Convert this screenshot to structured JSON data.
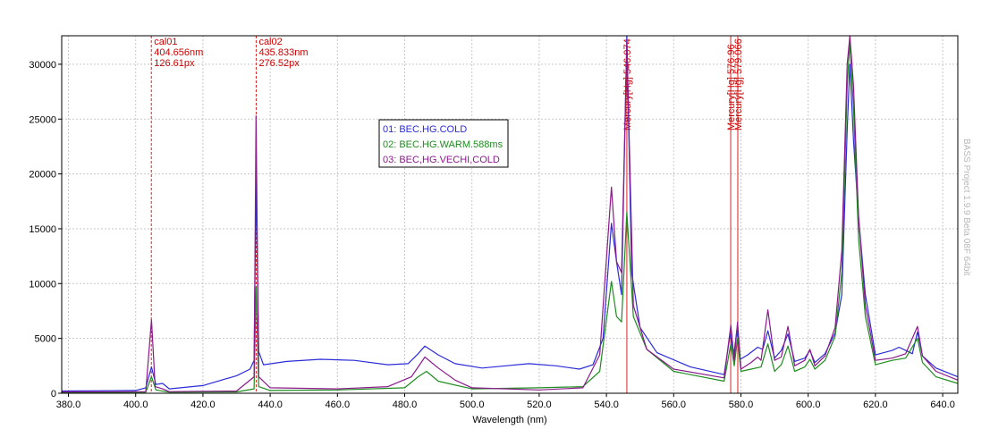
{
  "chart_data": {
    "type": "line",
    "xlabel": "Wavelength (nm)",
    "xlim": [
      378.0,
      644.5
    ],
    "ylim": [
      0,
      32600
    ],
    "x_ticks": [
      "380.0",
      "400.0",
      "420.0",
      "440.0",
      "460.0",
      "480.0",
      "500.0",
      "520.0",
      "540.0",
      "560.0",
      "580.0",
      "600.0",
      "620.0",
      "640.0"
    ],
    "y_ticks": [
      "0",
      "5000",
      "10000",
      "15000",
      "20000",
      "25000",
      "30000"
    ],
    "grid": true,
    "legend_position": "top-center",
    "series": [
      {
        "name": "01: BEC.HG.COLD",
        "color": "#2b2bd9",
        "points": [
          [
            378,
            200
          ],
          [
            400,
            250
          ],
          [
            403,
            500
          ],
          [
            404.7,
            2400
          ],
          [
            406,
            800
          ],
          [
            408,
            900
          ],
          [
            410,
            400
          ],
          [
            420,
            700
          ],
          [
            430,
            1600
          ],
          [
            434,
            2200
          ],
          [
            435.2,
            3000
          ],
          [
            435.8,
            19300
          ],
          [
            436.6,
            3800
          ],
          [
            438,
            2600
          ],
          [
            445,
            2900
          ],
          [
            455,
            3100
          ],
          [
            465,
            3000
          ],
          [
            475,
            2600
          ],
          [
            481,
            2700
          ],
          [
            484,
            3600
          ],
          [
            486,
            4300
          ],
          [
            490,
            3500
          ],
          [
            495,
            2700
          ],
          [
            503,
            2300
          ],
          [
            510,
            2500
          ],
          [
            517,
            2700
          ],
          [
            525,
            2500
          ],
          [
            532,
            2200
          ],
          [
            536,
            2600
          ],
          [
            539,
            5000
          ],
          [
            541.5,
            15500
          ],
          [
            543,
            12000
          ],
          [
            544.5,
            9000
          ],
          [
            546.07,
            32600
          ],
          [
            547.5,
            11000
          ],
          [
            550,
            6000
          ],
          [
            555,
            3700
          ],
          [
            565,
            2400
          ],
          [
            575,
            1700
          ],
          [
            576.8,
            5400
          ],
          [
            577.9,
            3500
          ],
          [
            578.8,
            5800
          ],
          [
            579.8,
            3100
          ],
          [
            582,
            3500
          ],
          [
            585,
            4200
          ],
          [
            586.5,
            4000
          ],
          [
            588,
            5700
          ],
          [
            590,
            3200
          ],
          [
            592,
            3900
          ],
          [
            594,
            5400
          ],
          [
            596,
            2900
          ],
          [
            599,
            3200
          ],
          [
            600.5,
            3900
          ],
          [
            602,
            2800
          ],
          [
            605,
            3600
          ],
          [
            608,
            5500
          ],
          [
            610,
            9000
          ],
          [
            611.6,
            24000
          ],
          [
            612.4,
            30000
          ],
          [
            613.5,
            23000
          ],
          [
            615,
            16000
          ],
          [
            617,
            9000
          ],
          [
            620,
            3500
          ],
          [
            625,
            3900
          ],
          [
            627,
            4200
          ],
          [
            629,
            3900
          ],
          [
            631,
            3600
          ],
          [
            632.5,
            5600
          ],
          [
            634,
            3400
          ],
          [
            638,
            2300
          ],
          [
            644.5,
            1500
          ]
        ]
      },
      {
        "name": "02: BEC.HG.WARM.588ms",
        "color": "#1e8c1e",
        "points": [
          [
            378,
            80
          ],
          [
            403,
            100
          ],
          [
            404.7,
            1500
          ],
          [
            406,
            300
          ],
          [
            410,
            100
          ],
          [
            430,
            120
          ],
          [
            435.2,
            400
          ],
          [
            435.8,
            9700
          ],
          [
            436.6,
            600
          ],
          [
            440,
            250
          ],
          [
            460,
            300
          ],
          [
            480,
            500
          ],
          [
            484,
            1500
          ],
          [
            486.5,
            2000
          ],
          [
            490,
            1100
          ],
          [
            500,
            400
          ],
          [
            520,
            500
          ],
          [
            533,
            600
          ],
          [
            538,
            2000
          ],
          [
            541.5,
            10200
          ],
          [
            543,
            7000
          ],
          [
            544.5,
            6500
          ],
          [
            546.07,
            16500
          ],
          [
            548,
            7000
          ],
          [
            552,
            4000
          ],
          [
            560,
            2000
          ],
          [
            575,
            1100
          ],
          [
            577,
            4500
          ],
          [
            578,
            2500
          ],
          [
            579,
            5000
          ],
          [
            580,
            2000
          ],
          [
            583,
            2200
          ],
          [
            586,
            2400
          ],
          [
            588,
            4500
          ],
          [
            590,
            2000
          ],
          [
            592,
            2600
          ],
          [
            594,
            4300
          ],
          [
            596,
            2000
          ],
          [
            599,
            2400
          ],
          [
            600.5,
            3100
          ],
          [
            602,
            2200
          ],
          [
            605,
            3000
          ],
          [
            608,
            5200
          ],
          [
            610,
            11000
          ],
          [
            611.6,
            28000
          ],
          [
            612.4,
            32000
          ],
          [
            613.5,
            26000
          ],
          [
            615,
            14000
          ],
          [
            617,
            7000
          ],
          [
            620,
            2600
          ],
          [
            625,
            3000
          ],
          [
            629,
            3200
          ],
          [
            632.5,
            5000
          ],
          [
            634,
            2800
          ],
          [
            638,
            1500
          ],
          [
            644.5,
            900
          ]
        ]
      },
      {
        "name": "03: BEC,HG.VECHI,COLD",
        "color": "#8b1a8b",
        "points": [
          [
            378,
            120
          ],
          [
            403,
            150
          ],
          [
            404.7,
            6700
          ],
          [
            405.8,
            600
          ],
          [
            408,
            400
          ],
          [
            410,
            150
          ],
          [
            430,
            200
          ],
          [
            435.2,
            1500
          ],
          [
            435.8,
            25300
          ],
          [
            436.6,
            1500
          ],
          [
            440,
            500
          ],
          [
            460,
            400
          ],
          [
            475,
            600
          ],
          [
            482,
            1500
          ],
          [
            486,
            3300
          ],
          [
            490,
            2300
          ],
          [
            495,
            1200
          ],
          [
            500,
            500
          ],
          [
            520,
            300
          ],
          [
            533,
            500
          ],
          [
            538,
            3500
          ],
          [
            541.5,
            18800
          ],
          [
            543,
            12000
          ],
          [
            544.5,
            11000
          ],
          [
            546.07,
            32000
          ],
          [
            548,
            8000
          ],
          [
            552,
            4000
          ],
          [
            560,
            2200
          ],
          [
            575,
            1400
          ],
          [
            577,
            6200
          ],
          [
            578,
            3000
          ],
          [
            579,
            6500
          ],
          [
            580,
            2200
          ],
          [
            583,
            2800
          ],
          [
            585,
            3300
          ],
          [
            586,
            3000
          ],
          [
            588,
            7600
          ],
          [
            590,
            3000
          ],
          [
            592,
            3300
          ],
          [
            594,
            6100
          ],
          [
            596,
            2500
          ],
          [
            599,
            3000
          ],
          [
            600.5,
            4000
          ],
          [
            602,
            2500
          ],
          [
            605,
            3400
          ],
          [
            608,
            6000
          ],
          [
            610,
            13000
          ],
          [
            611.6,
            30000
          ],
          [
            612.4,
            32600
          ],
          [
            613.5,
            28000
          ],
          [
            615,
            16000
          ],
          [
            617,
            8000
          ],
          [
            620,
            3000
          ],
          [
            625,
            3200
          ],
          [
            629,
            3600
          ],
          [
            632.5,
            6100
          ],
          [
            634,
            3400
          ],
          [
            638,
            2000
          ],
          [
            644.5,
            1200
          ]
        ]
      }
    ],
    "markers": [
      {
        "x": 404.656,
        "style": "dashed",
        "labels": [
          "cal01",
          "404.656nm",
          "126.61px"
        ]
      },
      {
        "x": 435.833,
        "style": "dashed",
        "labels": [
          "cal02",
          "435.833nm",
          "276.52px"
        ]
      },
      {
        "x": 546.074,
        "style": "solid",
        "vertical_label": "Mercury[Hg] 546.074"
      },
      {
        "x": 576.96,
        "style": "solid",
        "vertical_label": "Mercury[Hg] 576.96"
      },
      {
        "x": 579.066,
        "style": "solid",
        "vertical_label": "Mercury[Hg] 579.066"
      }
    ]
  },
  "watermark": "BASS Project 1.9.9 Beta 08F 64bit"
}
